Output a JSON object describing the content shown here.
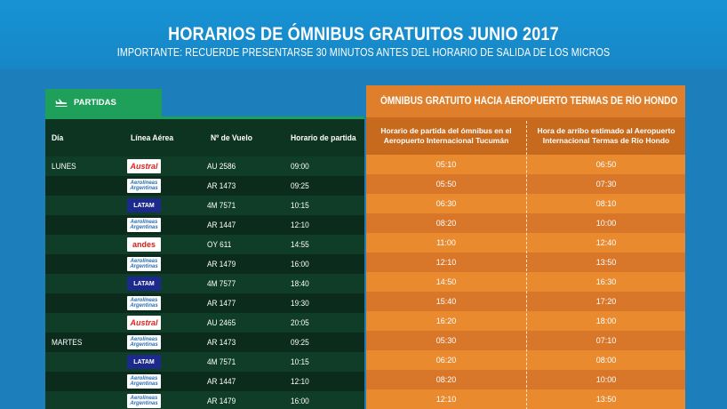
{
  "header": {
    "title": "HORARIOS DE ÓMNIBUS GRATUITOS JUNIO 2017",
    "subtitle": "IMPORTANTE: RECUERDE PRESENTARSE 30 MINUTOS ANTES DEL HORARIO DE SALIDA DE LOS MICROS"
  },
  "departures": {
    "tab_label": "PARTIDAS",
    "tab_icon": "airplane-icon",
    "columns": [
      "Día",
      "Línea Aérea",
      "Nº de Vuelo",
      "Horario de partida"
    ],
    "rows": [
      {
        "day": "LUNES",
        "airline": "Austral",
        "flight": "AU 2586",
        "time": "09:00"
      },
      {
        "day": "",
        "airline": "Aerolíneas Argentinas",
        "flight": "AR 1473",
        "time": "09:25"
      },
      {
        "day": "",
        "airline": "LATAM",
        "flight": "4M 7571",
        "time": "10:15"
      },
      {
        "day": "",
        "airline": "Aerolíneas Argentinas",
        "flight": "AR 1447",
        "time": "12:10"
      },
      {
        "day": "",
        "airline": "andes",
        "flight": "OY 611",
        "time": "14:55"
      },
      {
        "day": "",
        "airline": "Aerolíneas Argentinas",
        "flight": "AR 1479",
        "time": "16:00"
      },
      {
        "day": "",
        "airline": "LATAM",
        "flight": "4M 7577",
        "time": "18:40"
      },
      {
        "day": "",
        "airline": "Aerolíneas Argentinas",
        "flight": "AR 1477",
        "time": "19:30"
      },
      {
        "day": "",
        "airline": "Austral",
        "flight": "AU 2465",
        "time": "20:05"
      },
      {
        "day": "MARTES",
        "airline": "Aerolíneas Argentinas",
        "flight": "AR 1473",
        "time": "09:25"
      },
      {
        "day": "",
        "airline": "LATAM",
        "flight": "4M 7571",
        "time": "10:15"
      },
      {
        "day": "",
        "airline": "Aerolíneas Argentinas",
        "flight": "AR 1447",
        "time": "12:10"
      },
      {
        "day": "",
        "airline": "Aerolíneas Argentinas",
        "flight": "AR 1479",
        "time": "16:00"
      }
    ]
  },
  "bus": {
    "title": "ÓMNIBUS GRATUITO HACIA AEROPUERTO TERMAS DE RÍO HONDO",
    "title_icon": "bus-icon",
    "col1": "Horario de partida del ómnibus en el Aeropuerto Internacional Tucumán",
    "col2": "Hora de arribo estimado al Aeropuerto Internacional Termas de Río Hondo",
    "rows": [
      {
        "dep": "05:10",
        "arr": "06:50"
      },
      {
        "dep": "05:50",
        "arr": "07:30"
      },
      {
        "dep": "06:30",
        "arr": "08:10"
      },
      {
        "dep": "08:20",
        "arr": "10:00"
      },
      {
        "dep": "11:00",
        "arr": "12:40"
      },
      {
        "dep": "12:10",
        "arr": "13:50"
      },
      {
        "dep": "14:50",
        "arr": "16:30"
      },
      {
        "dep": "15:40",
        "arr": "17:20"
      },
      {
        "dep": "16:20",
        "arr": "18:00"
      },
      {
        "dep": "05:30",
        "arr": "07:10"
      },
      {
        "dep": "06:20",
        "arr": "08:00"
      },
      {
        "dep": "08:20",
        "arr": "10:00"
      },
      {
        "dep": "12:10",
        "arr": "13:50"
      }
    ]
  },
  "colors": {
    "background": "#1a8fcf",
    "green_tab": "#1fa05a",
    "dark_green": "#0f3a26",
    "orange": "#e98a2f"
  }
}
